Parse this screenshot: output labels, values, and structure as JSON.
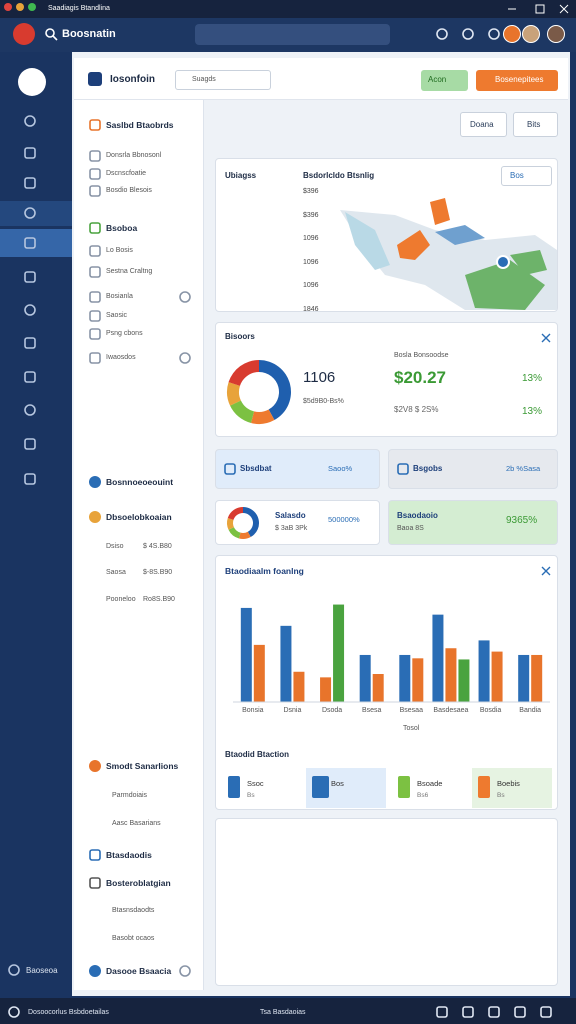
{
  "window": {
    "title": "Saadiagis Btandlina"
  },
  "topbar": {
    "app_name": "Boosnatin"
  },
  "rail": {
    "footer": "Baoseoa"
  },
  "header": {
    "logo_text": "Iosonfoin",
    "dropdown": "Suagds",
    "green_button": "Acon",
    "orange_button": "Bosenepitees",
    "button_1": "Doana",
    "button_2": "Bits"
  },
  "sidebar": {
    "items": [
      {
        "text": "Saslbd Btaobrds"
      },
      {
        "text": "Donsrla Bbnosonl"
      },
      {
        "text": "Dscnscfoatie"
      },
      {
        "text": "Bosdio Blesois"
      },
      {
        "text": "Bsoboa"
      },
      {
        "text": "Lo Bosis"
      },
      {
        "text": "Sestna Craltng"
      },
      {
        "text": "Bosianla"
      },
      {
        "text": "Saosic"
      },
      {
        "text": "Psng cbons"
      },
      {
        "text": "Iwaosdos"
      },
      {
        "text": "Bosnnoeoeouint"
      },
      {
        "text": "Dbsoelobkoaian"
      },
      {
        "text": "Dsiso",
        "value": "$ 4S.B80"
      },
      {
        "text": "Saosa",
        "value": "$-8S.B90"
      },
      {
        "text": "Pooneloo",
        "value": "Ro8S.B90"
      },
      {
        "text": "Smodt Sanarlions"
      },
      {
        "text": "Parmdoiais"
      },
      {
        "text": "Aasc Basarians"
      },
      {
        "text": "Btasdaodis"
      },
      {
        "text": "Bosteroblatgian"
      },
      {
        "text": "Btasnsdaodts"
      },
      {
        "text": "Basobt ocaos"
      },
      {
        "text": "Dasooe Bsaacia"
      }
    ]
  },
  "map_card": {
    "title": "Ubiagss",
    "subtitle": "Bsdorlcldo Btsnlig",
    "dropdown": "Bos",
    "axis_labels": [
      "$396",
      "$396",
      "1096",
      "1096",
      "1096",
      "1846"
    ]
  },
  "donut_card": {
    "title": "Bisoors",
    "big_number": "1106",
    "sub_number": "$5d9B0-Bs%",
    "caption": "Bosla Bonsoodse",
    "money": "$20.27",
    "money_sub": "$2V8 $ 2S%",
    "percent_1": "13%",
    "percent_2": "13%"
  },
  "kpi_cards": [
    {
      "title": "Sbsdbat",
      "value": "Saoo%"
    },
    {
      "title": "Bsgobs",
      "value": "2b %Sasa"
    },
    {
      "title": "Salasdo",
      "sub": "$ 3aB 3Pk",
      "value": "500000%"
    },
    {
      "title": "Bsaodaoio",
      "sub": "Baoa 8S",
      "value": "9365%"
    }
  ],
  "bar_card": {
    "section": "Btaodid Btaction",
    "tiles": [
      {
        "title": "Ssoc",
        "sub": "Bs"
      },
      {
        "title": "Bos"
      },
      {
        "title": "Bsoade",
        "sub": "Bs6"
      },
      {
        "title": "Boebis",
        "sub": "Bs"
      }
    ]
  },
  "chart_data": {
    "type": "bar",
    "title": "Btaodiaalm foanlng",
    "x_label": "Tosol",
    "categories": [
      "Bonsia",
      "Dsnia",
      "Dsoda",
      "Bsesa",
      "Bsesaa",
      "Basdesaea",
      "Bosdia",
      "Bandia"
    ],
    "series": [
      {
        "color": "#2a6db5",
        "values": [
          84,
          68,
          null,
          42,
          42,
          78,
          55,
          42
        ]
      },
      {
        "color": "#e8742b",
        "values": [
          51,
          27,
          22,
          25,
          39,
          48,
          45,
          42
        ]
      },
      {
        "color": "#4aa33f",
        "values": [
          null,
          null,
          87,
          null,
          null,
          38,
          null,
          null
        ]
      }
    ],
    "ylim": [
      0,
      100
    ]
  },
  "statusbar": {
    "left": "Dosoocorlus Bsbdoetailas",
    "center": "Tsa Basdaoias"
  }
}
